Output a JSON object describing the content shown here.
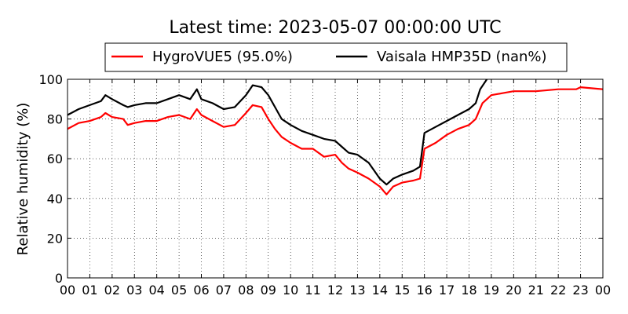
{
  "chart_data": {
    "type": "line",
    "title": "Latest time: 2023-05-07 00:00:00 UTC",
    "xlabel": "",
    "ylabel": "Relative humidity (%)",
    "xlim": [
      0,
      24
    ],
    "ylim": [
      0,
      100
    ],
    "grid": true,
    "legend_position": "top",
    "x_ticks": [
      "00",
      "01",
      "02",
      "03",
      "04",
      "05",
      "06",
      "07",
      "08",
      "09",
      "10",
      "11",
      "12",
      "13",
      "14",
      "15",
      "16",
      "17",
      "18",
      "19",
      "20",
      "21",
      "22",
      "23",
      "00"
    ],
    "y_ticks": [
      0,
      20,
      40,
      60,
      80,
      100
    ],
    "series": [
      {
        "name": "HygroVUE5 (95.0%)",
        "color": "#ff0000",
        "x": [
          0,
          0.5,
          1,
          1.5,
          1.7,
          2,
          2.5,
          2.7,
          3,
          3.5,
          4,
          4.5,
          5,
          5.5,
          5.8,
          6,
          6.5,
          7,
          7.5,
          8,
          8.3,
          8.7,
          9,
          9.3,
          9.6,
          10,
          10.5,
          11,
          11.5,
          12,
          12.3,
          12.6,
          13,
          13.5,
          14,
          14.3,
          14.6,
          15,
          15.5,
          15.8,
          16,
          16.5,
          17,
          17.5,
          18,
          18.3,
          18.6,
          19,
          19.5,
          20,
          21,
          22,
          22.8,
          23,
          24
        ],
        "y": [
          75,
          78,
          79,
          81,
          83,
          81,
          80,
          77,
          78,
          79,
          79,
          81,
          82,
          80,
          85,
          82,
          79,
          76,
          77,
          83,
          87,
          86,
          80,
          75,
          71,
          68,
          65,
          65,
          61,
          62,
          58,
          55,
          53,
          50,
          46,
          42,
          46,
          48,
          49,
          50,
          65,
          68,
          72,
          75,
          77,
          80,
          88,
          92,
          93,
          94,
          94,
          95,
          95,
          96,
          95
        ]
      },
      {
        "name": "Vaisala HMP35D (nan%)",
        "color": "#000000",
        "x": [
          0,
          0.5,
          1,
          1.5,
          1.7,
          2,
          2.5,
          2.7,
          3,
          3.5,
          4,
          4.5,
          5,
          5.5,
          5.8,
          6,
          6.5,
          7,
          7.5,
          8,
          8.3,
          8.7,
          9,
          9.3,
          9.6,
          10,
          10.5,
          11,
          11.5,
          12,
          12.3,
          12.6,
          13,
          13.5,
          14,
          14.3,
          14.6,
          15,
          15.5,
          15.8,
          16,
          16.5,
          17,
          17.5,
          18,
          18.3,
          18.5,
          18.8
        ],
        "y": [
          82,
          85,
          87,
          89,
          92,
          90,
          87,
          86,
          87,
          88,
          88,
          90,
          92,
          90,
          95,
          90,
          88,
          85,
          86,
          92,
          97,
          96,
          92,
          86,
          80,
          77,
          74,
          72,
          70,
          69,
          66,
          63,
          62,
          58,
          50,
          47,
          50,
          52,
          54,
          56,
          73,
          76,
          79,
          82,
          85,
          88,
          95,
          100
        ]
      }
    ]
  }
}
